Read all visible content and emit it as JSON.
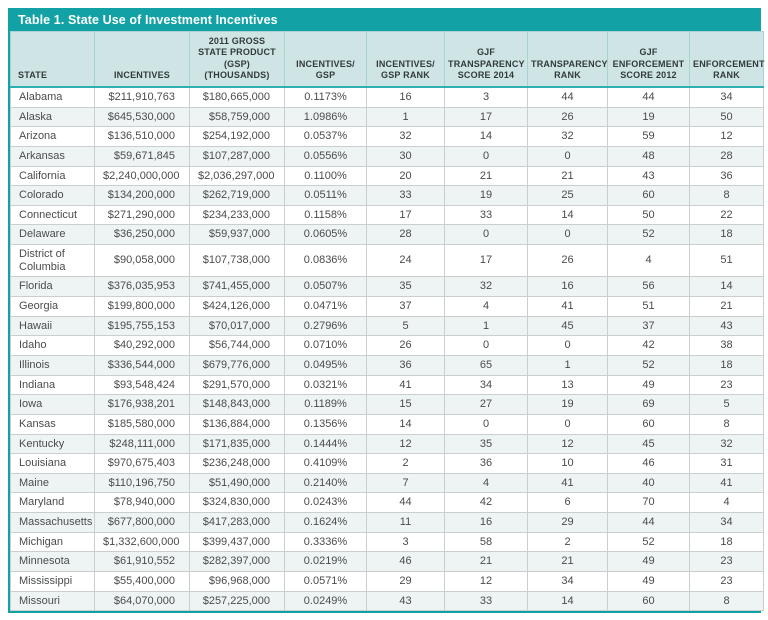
{
  "table": {
    "title": "Table 1. State Use of Investment Incentives",
    "columns": [
      {
        "label": "STATE",
        "align": "left"
      },
      {
        "label": "INCENTIVES",
        "align": "right"
      },
      {
        "label": "2011 GROSS STATE PRODUCT (GSP) (THOUSANDS)",
        "align": "right"
      },
      {
        "label": "INCENTIVES/ GSP",
        "align": "center"
      },
      {
        "label": "INCENTIVES/ GSP RANK",
        "align": "center"
      },
      {
        "label": "GJF TRANSPARENCY SCORE 2014",
        "align": "center"
      },
      {
        "label": "TRANSPARENCY RANK",
        "align": "center"
      },
      {
        "label": "GJF ENFORCEMENT SCORE 2012",
        "align": "center"
      },
      {
        "label": "ENFORCEMENT RANK",
        "align": "center"
      }
    ],
    "rows": [
      [
        "Alabama",
        "$211,910,763",
        "$180,665,000",
        "0.1173%",
        "16",
        "3",
        "44",
        "44",
        "34"
      ],
      [
        "Alaska",
        "$645,530,000",
        "$58,759,000",
        "1.0986%",
        "1",
        "17",
        "26",
        "19",
        "50"
      ],
      [
        "Arizona",
        "$136,510,000",
        "$254,192,000",
        "0.0537%",
        "32",
        "14",
        "32",
        "59",
        "12"
      ],
      [
        "Arkansas",
        "$59,671,845",
        "$107,287,000",
        "0.0556%",
        "30",
        "0",
        "0",
        "48",
        "28"
      ],
      [
        "California",
        "$2,240,000,000",
        "$2,036,297,000",
        "0.1100%",
        "20",
        "21",
        "21",
        "43",
        "36"
      ],
      [
        "Colorado",
        "$134,200,000",
        "$262,719,000",
        "0.0511%",
        "33",
        "19",
        "25",
        "60",
        "8"
      ],
      [
        "Connecticut",
        "$271,290,000",
        "$234,233,000",
        "0.1158%",
        "17",
        "33",
        "14",
        "50",
        "22"
      ],
      [
        "Delaware",
        "$36,250,000",
        "$59,937,000",
        "0.0605%",
        "28",
        "0",
        "0",
        "52",
        "18"
      ],
      [
        "District of Columbia",
        "$90,058,000",
        "$107,738,000",
        "0.0836%",
        "24",
        "17",
        "26",
        "4",
        "51"
      ],
      [
        "Florida",
        "$376,035,953",
        "$741,455,000",
        "0.0507%",
        "35",
        "32",
        "16",
        "56",
        "14"
      ],
      [
        "Georgia",
        "$199,800,000",
        "$424,126,000",
        "0.0471%",
        "37",
        "4",
        "41",
        "51",
        "21"
      ],
      [
        "Hawaii",
        "$195,755,153",
        "$70,017,000",
        "0.2796%",
        "5",
        "1",
        "45",
        "37",
        "43"
      ],
      [
        "Idaho",
        "$40,292,000",
        "$56,744,000",
        "0.0710%",
        "26",
        "0",
        "0",
        "42",
        "38"
      ],
      [
        "Illinois",
        "$336,544,000",
        "$679,776,000",
        "0.0495%",
        "36",
        "65",
        "1",
        "52",
        "18"
      ],
      [
        "Indiana",
        "$93,548,424",
        "$291,570,000",
        "0.0321%",
        "41",
        "34",
        "13",
        "49",
        "23"
      ],
      [
        "Iowa",
        "$176,938,201",
        "$148,843,000",
        "0.1189%",
        "15",
        "27",
        "19",
        "69",
        "5"
      ],
      [
        "Kansas",
        "$185,580,000",
        "$136,884,000",
        "0.1356%",
        "14",
        "0",
        "0",
        "60",
        "8"
      ],
      [
        "Kentucky",
        "$248,111,000",
        "$171,835,000",
        "0.1444%",
        "12",
        "35",
        "12",
        "45",
        "32"
      ],
      [
        "Louisiana",
        "$970,675,403",
        "$236,248,000",
        "0.4109%",
        "2",
        "36",
        "10",
        "46",
        "31"
      ],
      [
        "Maine",
        "$110,196,750",
        "$51,490,000",
        "0.2140%",
        "7",
        "4",
        "41",
        "40",
        "41"
      ],
      [
        "Maryland",
        "$78,940,000",
        "$324,830,000",
        "0.0243%",
        "44",
        "42",
        "6",
        "70",
        "4"
      ],
      [
        "Massachusetts",
        "$677,800,000",
        "$417,283,000",
        "0.1624%",
        "11",
        "16",
        "29",
        "44",
        "34"
      ],
      [
        "Michigan",
        "$1,332,600,000",
        "$399,437,000",
        "0.3336%",
        "3",
        "58",
        "2",
        "52",
        "18"
      ],
      [
        "Minnesota",
        "$61,910,552",
        "$282,397,000",
        "0.0219%",
        "46",
        "21",
        "21",
        "49",
        "23"
      ],
      [
        "Mississippi",
        "$55,400,000",
        "$96,968,000",
        "0.0571%",
        "29",
        "12",
        "34",
        "49",
        "23"
      ],
      [
        "Missouri",
        "$64,070,000",
        "$257,225,000",
        "0.0249%",
        "43",
        "33",
        "14",
        "60",
        "8"
      ]
    ],
    "colors": {
      "accent_teal": "#12a2a5",
      "header_bg": "#cfe5e5",
      "row_stripe": "#eef4f4",
      "grid_line": "#c9cfce",
      "body_text": "#4a4c4c"
    }
  }
}
